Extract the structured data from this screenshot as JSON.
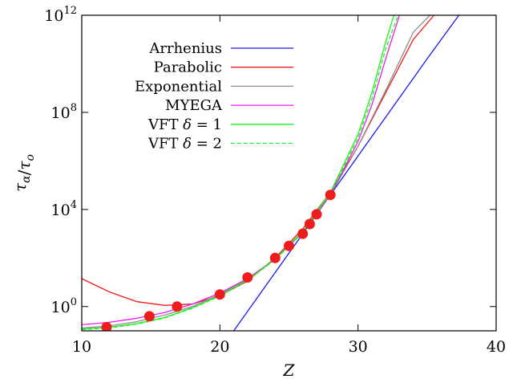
{
  "chart_data": {
    "type": "line",
    "title": "",
    "xlabel": "Z",
    "ylabel": "τα/το",
    "xlim": [
      10,
      40
    ],
    "ylim_log10": [
      -1,
      12
    ],
    "y_scale": "log",
    "x_ticks": [
      10,
      20,
      30,
      40
    ],
    "x_tick_labels": [
      "10",
      "20",
      "30",
      "40"
    ],
    "y_ticks_log10": [
      0,
      4,
      8,
      12
    ],
    "y_tick_labels": [
      "10^0",
      "10^4",
      "10^8",
      "10^12"
    ],
    "grid": false,
    "legend_position": "top-left",
    "points": {
      "name": "data",
      "color": "#ee1c1c",
      "x": [
        11.8,
        14.9,
        16.9,
        20.0,
        22.0,
        24.0,
        25.0,
        26.0,
        26.5,
        27.0,
        28.0
      ],
      "y_log10": [
        -0.85,
        -0.4,
        0.0,
        0.5,
        1.2,
        2.0,
        2.5,
        3.0,
        3.4,
        3.8,
        4.6
      ]
    },
    "series": [
      {
        "name": "Arrhenius",
        "color": "#1a1aee",
        "dash": false,
        "x": [
          21.0,
          25.0,
          30.0,
          35.0,
          37.3
        ],
        "y_log10": [
          -1.0,
          2.2,
          6.2,
          10.2,
          12.0
        ]
      },
      {
        "name": "Parabolic",
        "color": "#ee1c1c",
        "dash": false,
        "x": [
          10.0,
          12.0,
          14.0,
          16.0,
          18.0,
          20.0,
          22.0,
          24.0,
          26.0,
          28.0,
          30.0,
          32.0,
          34.0,
          35.5
        ],
        "y_log10": [
          1.15,
          0.6,
          0.2,
          0.05,
          0.1,
          0.45,
          1.05,
          2.0,
          3.2,
          4.7,
          6.6,
          8.8,
          11.0,
          12.0
        ]
      },
      {
        "name": "Exponential",
        "color": "#909090",
        "dash": false,
        "x": [
          10.0,
          12.0,
          14.0,
          16.0,
          18.0,
          20.0,
          22.0,
          24.0,
          26.0,
          28.0,
          30.0,
          32.0,
          34.0,
          35.2
        ],
        "y_log10": [
          -0.88,
          -0.8,
          -0.62,
          -0.35,
          0.0,
          0.5,
          1.15,
          1.95,
          3.1,
          4.6,
          6.6,
          8.9,
          11.3,
          12.0
        ]
      },
      {
        "name": "MYEGA",
        "color": "#ee1cee",
        "dash": false,
        "x": [
          10.0,
          12.0,
          14.0,
          16.0,
          18.0,
          20.0,
          22.0,
          24.0,
          26.0,
          28.0,
          30.0,
          31.0,
          32.0,
          33.0
        ],
        "y_log10": [
          -0.75,
          -0.65,
          -0.48,
          -0.25,
          0.1,
          0.55,
          1.15,
          1.95,
          3.05,
          4.6,
          6.8,
          8.3,
          10.2,
          12.0
        ]
      },
      {
        "name": "VFT δ = 1",
        "color": "#22ee22",
        "dash": false,
        "x": [
          10.0,
          12.0,
          14.0,
          16.0,
          18.0,
          20.0,
          22.0,
          24.0,
          26.0,
          28.0,
          30.0,
          31.0,
          32.0,
          32.6
        ],
        "y_log10": [
          -0.92,
          -0.85,
          -0.7,
          -0.45,
          -0.05,
          0.45,
          1.1,
          1.95,
          3.1,
          4.7,
          7.1,
          8.8,
          10.9,
          12.0
        ]
      },
      {
        "name": "VFT δ = 2",
        "color": "#22ee22",
        "dash": true,
        "x": [
          10.0,
          12.0,
          14.0,
          16.0,
          18.0,
          20.0,
          22.0,
          24.0,
          26.0,
          28.0,
          30.0,
          31.0,
          32.0,
          32.9
        ],
        "y_log10": [
          -0.95,
          -0.88,
          -0.72,
          -0.47,
          -0.07,
          0.43,
          1.08,
          1.93,
          3.05,
          4.65,
          6.95,
          8.55,
          10.6,
          12.0
        ]
      }
    ]
  }
}
